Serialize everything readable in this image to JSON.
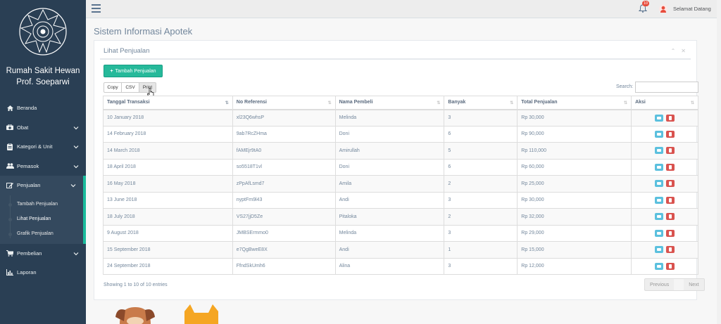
{
  "sidebar": {
    "brand_line1": "Rumah Sakit Hewan",
    "brand_line2": "Prof. Soeparwi",
    "items": [
      {
        "label": "Beranda",
        "icon": "home-icon"
      },
      {
        "label": "Obat",
        "icon": "medkit-icon"
      },
      {
        "label": "Kategori & Unit",
        "icon": "clipboard-icon"
      },
      {
        "label": "Pemasok",
        "icon": "users-icon"
      },
      {
        "label": "Penjualan",
        "icon": "edit-icon"
      },
      {
        "label": "Pembelian",
        "icon": "cart-icon"
      },
      {
        "label": "Laporan",
        "icon": "bar-chart-icon"
      }
    ],
    "submenu": [
      {
        "label": "Tambah Penjualan"
      },
      {
        "label": "Lihat Penjualan"
      },
      {
        "label": "Grafik Penjualan"
      }
    ]
  },
  "topnav": {
    "notification_count": "10",
    "welcome": "Selamat Datang"
  },
  "page": {
    "title": "Sistem Informasi Apotek",
    "panel_title": "Lihat Penjualan",
    "add_button": "Tambah Penjualan",
    "export": {
      "copy": "Copy",
      "csv": "CSV",
      "print": "Print"
    },
    "search_label": "Search:",
    "search_value": ""
  },
  "table": {
    "headers": [
      "Tanggal Transaksi",
      "No Referensi",
      "Nama Pembeli",
      "Banyak",
      "Total Penjualan",
      "Aksi"
    ],
    "rows": [
      [
        "10 January 2018",
        "xl23Q6whsP",
        "Melinda",
        "3",
        "Rp 30,000"
      ],
      [
        "14 February 2018",
        "9ab7RcZHma",
        "Doni",
        "6",
        "Rp 90,000"
      ],
      [
        "14 March 2018",
        "fAMEjr9tA0",
        "Amirullah",
        "5",
        "Rp 110,000"
      ],
      [
        "18 April 2018",
        "so5518T1vl",
        "Doni",
        "6",
        "Rp 60,000"
      ],
      [
        "16 May 2018",
        "zPpAfLsmd7",
        "Amila",
        "2",
        "Rp 25,000"
      ],
      [
        "13 June 2018",
        "nyptFm9l43",
        "Andi",
        "3",
        "Rp 30,000"
      ],
      [
        "18 July 2018",
        "VS27jjD5Ze",
        "Pitaloka",
        "2",
        "Rp 32,000"
      ],
      [
        "9 August 2018",
        "JMBSErmmo0",
        "Melinda",
        "3",
        "Rp 29,000"
      ],
      [
        "15 September 2018",
        "e7QgBweE8X",
        "Andi",
        "1",
        "Rp 15,000"
      ],
      [
        "24 September 2018",
        "FfndSkUmh6",
        "Alina",
        "3",
        "Rp 12,000"
      ]
    ]
  },
  "footer": {
    "info": "Showing 1 to 10 of 10 entries",
    "previous": "Previous",
    "next": "Next"
  },
  "colors": {
    "sidebar": "#2A3F54",
    "accent": "#1ABB9C",
    "add_button": "#26B99A",
    "view_button": "#5BC0DE",
    "delete_button": "#D9534F",
    "badge": "#E74C3C"
  }
}
